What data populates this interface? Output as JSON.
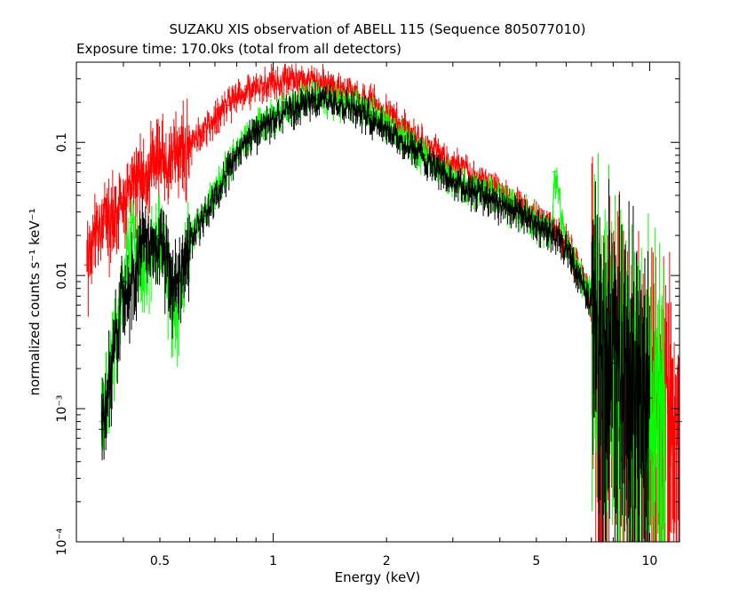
{
  "chart_data": {
    "type": "scatter",
    "title": "SUZAKU XIS observation of ABELL 115 (Sequence 805077010)",
    "subtitle": "Exposure time: 170.0ks (total from all detectors)",
    "xlabel": "Energy (keV)",
    "ylabel": "normalized counts s⁻¹ keV⁻¹",
    "xscale": "log",
    "yscale": "log",
    "xlim": [
      0.3,
      12
    ],
    "ylim": [
      0.0001,
      0.4
    ],
    "x_ticks": [
      {
        "value": 0.5,
        "label": "0.5"
      },
      {
        "value": 1,
        "label": "1"
      },
      {
        "value": 2,
        "label": "2"
      },
      {
        "value": 5,
        "label": "5"
      },
      {
        "value": 10,
        "label": "10"
      }
    ],
    "y_ticks": [
      {
        "value": 0.1,
        "label": "0.1"
      },
      {
        "value": 0.01,
        "label": "0.01"
      },
      {
        "value": 0.001,
        "label": "10⁻³"
      },
      {
        "value": 0.0001,
        "label": "10⁻⁴"
      }
    ],
    "series": [
      {
        "color": "#ff0000",
        "points": [
          [
            0.32,
            0.012
          ],
          [
            0.34,
            0.022
          ],
          [
            0.36,
            0.028
          ],
          [
            0.38,
            0.03
          ],
          [
            0.4,
            0.038
          ],
          [
            0.42,
            0.045
          ],
          [
            0.45,
            0.055
          ],
          [
            0.48,
            0.07
          ],
          [
            0.5,
            0.075
          ],
          [
            0.55,
            0.085
          ],
          [
            0.6,
            0.1
          ],
          [
            0.65,
            0.12
          ],
          [
            0.7,
            0.15
          ],
          [
            0.75,
            0.19
          ],
          [
            0.8,
            0.22
          ],
          [
            0.85,
            0.25
          ],
          [
            0.9,
            0.27
          ],
          [
            0.95,
            0.28
          ],
          [
            1.0,
            0.29
          ],
          [
            1.1,
            0.3
          ],
          [
            1.2,
            0.3
          ],
          [
            1.3,
            0.29
          ],
          [
            1.4,
            0.28
          ],
          [
            1.5,
            0.26
          ],
          [
            1.6,
            0.24
          ],
          [
            1.8,
            0.21
          ],
          [
            2.0,
            0.17
          ],
          [
            2.2,
            0.14
          ],
          [
            2.5,
            0.1
          ],
          [
            2.8,
            0.08
          ],
          [
            3.0,
            0.07
          ],
          [
            3.5,
            0.055
          ],
          [
            4.0,
            0.043
          ],
          [
            4.5,
            0.035
          ],
          [
            5.0,
            0.028
          ],
          [
            5.5,
            0.024
          ],
          [
            6.0,
            0.018
          ],
          [
            6.5,
            0.012
          ],
          [
            7.0,
            0.006
          ],
          [
            7.5,
            0.003
          ],
          [
            8.0,
            0.002
          ],
          [
            9.0,
            0.0015
          ],
          [
            10.0,
            0.0012
          ],
          [
            11.0,
            0.001
          ],
          [
            12.0,
            0.0008
          ]
        ]
      },
      {
        "color": "#00ff00",
        "points": [
          [
            0.35,
            0.0008
          ],
          [
            0.4,
            0.008
          ],
          [
            0.42,
            0.025
          ],
          [
            0.45,
            0.012
          ],
          [
            0.48,
            0.015
          ],
          [
            0.5,
            0.022
          ],
          [
            0.52,
            0.012
          ],
          [
            0.55,
            0.005
          ],
          [
            0.6,
            0.02
          ],
          [
            0.65,
            0.03
          ],
          [
            0.7,
            0.045
          ],
          [
            0.75,
            0.065
          ],
          [
            0.8,
            0.085
          ],
          [
            0.85,
            0.11
          ],
          [
            0.9,
            0.13
          ],
          [
            1.0,
            0.16
          ],
          [
            1.1,
            0.19
          ],
          [
            1.2,
            0.21
          ],
          [
            1.3,
            0.22
          ],
          [
            1.4,
            0.22
          ],
          [
            1.5,
            0.21
          ],
          [
            1.6,
            0.2
          ],
          [
            1.8,
            0.17
          ],
          [
            2.0,
            0.14
          ],
          [
            2.2,
            0.11
          ],
          [
            2.5,
            0.085
          ],
          [
            2.8,
            0.065
          ],
          [
            3.0,
            0.055
          ],
          [
            3.5,
            0.045
          ],
          [
            4.0,
            0.038
          ],
          [
            4.5,
            0.032
          ],
          [
            5.0,
            0.026
          ],
          [
            5.5,
            0.022
          ],
          [
            5.6,
            0.06
          ],
          [
            6.0,
            0.017
          ],
          [
            6.5,
            0.011
          ],
          [
            7.0,
            0.007
          ],
          [
            7.5,
            0.004
          ],
          [
            8.0,
            0.0025
          ],
          [
            9.0,
            0.0018
          ],
          [
            10.0,
            0.0013
          ],
          [
            11.0,
            0.001
          ]
        ]
      },
      {
        "color": "#000000",
        "points": [
          [
            0.35,
            0.0007
          ],
          [
            0.4,
            0.009
          ],
          [
            0.42,
            0.01
          ],
          [
            0.45,
            0.02
          ],
          [
            0.48,
            0.015
          ],
          [
            0.5,
            0.02
          ],
          [
            0.55,
            0.008
          ],
          [
            0.6,
            0.018
          ],
          [
            0.65,
            0.028
          ],
          [
            0.7,
            0.04
          ],
          [
            0.75,
            0.06
          ],
          [
            0.8,
            0.08
          ],
          [
            0.85,
            0.1
          ],
          [
            0.9,
            0.12
          ],
          [
            1.0,
            0.15
          ],
          [
            1.1,
            0.18
          ],
          [
            1.2,
            0.2
          ],
          [
            1.3,
            0.21
          ],
          [
            1.4,
            0.21
          ],
          [
            1.5,
            0.2
          ],
          [
            1.6,
            0.19
          ],
          [
            1.8,
            0.16
          ],
          [
            2.0,
            0.13
          ],
          [
            2.2,
            0.1
          ],
          [
            2.5,
            0.08
          ],
          [
            2.8,
            0.062
          ],
          [
            3.0,
            0.052
          ],
          [
            3.5,
            0.043
          ],
          [
            4.0,
            0.036
          ],
          [
            4.5,
            0.03
          ],
          [
            5.0,
            0.025
          ],
          [
            5.5,
            0.021
          ],
          [
            6.0,
            0.016
          ],
          [
            6.5,
            0.01
          ],
          [
            7.0,
            0.006
          ],
          [
            7.5,
            0.0035
          ],
          [
            8.0,
            0.0022
          ],
          [
            9.0,
            0.0016
          ],
          [
            10.0,
            0.0012
          ]
        ]
      }
    ],
    "grid": false,
    "legend": "none"
  }
}
